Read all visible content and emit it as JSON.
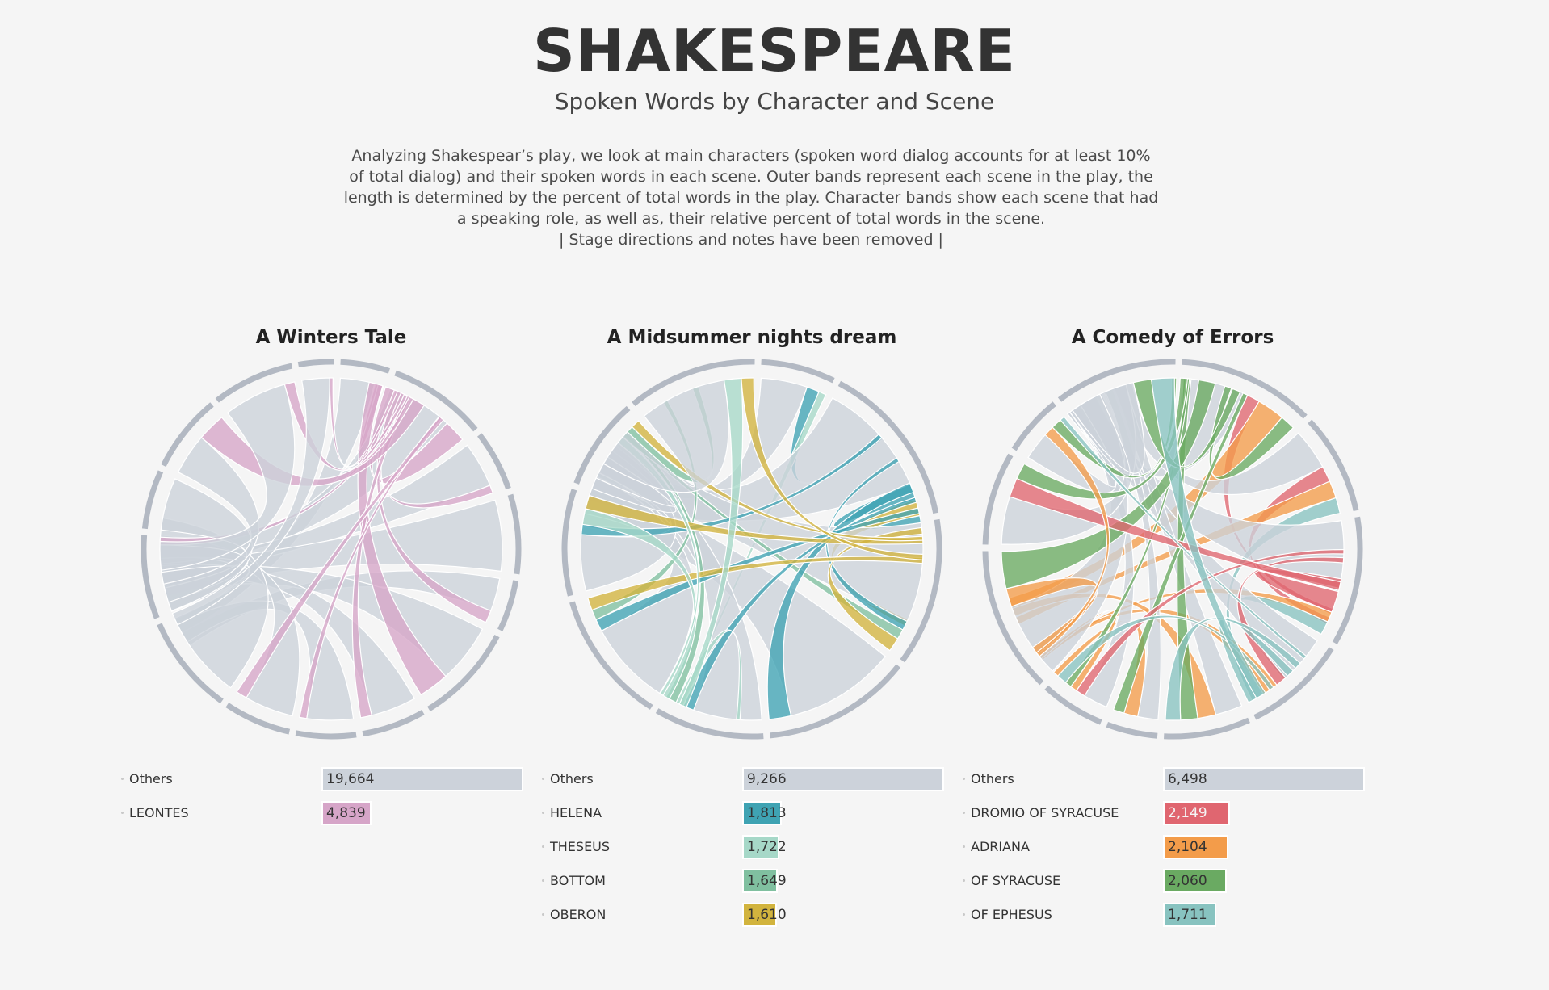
{
  "header": {
    "title": "SHAKESPEARE",
    "subtitle": "Spoken Words by Character and Scene",
    "description_lines": [
      "Analyzing Shakespear’s play, we look at main characters (spoken word dialog accounts for at least 10%",
      "of total dialog) and their spoken words in each scene. Outer bands represent each scene in the play, the",
      "length is determined by the percent of total words in the play. Character bands show each scene that had",
      "a speaking role, as well as, their relative percent of total words in the scene.",
      "| Stage directions and notes have been removed |"
    ]
  },
  "colors": {
    "outer_ring": "#b3b9c3",
    "others": "#ccd2da",
    "background": "#f5f5f5"
  },
  "chart_data": [
    {
      "type": "chord",
      "title": "A Winters Tale",
      "characters": [
        {
          "name": "Others",
          "words": 19664,
          "color": "#ccd2da"
        },
        {
          "name": "LEONTES",
          "words": 4839,
          "color": "#d6a5c8"
        }
      ],
      "scene_count": 15
    },
    {
      "type": "chord",
      "title": "A Midsummer nights dream",
      "characters": [
        {
          "name": "Others",
          "words": 9266,
          "color": "#ccd2da"
        },
        {
          "name": "HELENA",
          "words": 1813,
          "color": "#3fa3b3"
        },
        {
          "name": "THESEUS",
          "words": 1722,
          "color": "#a6d8c8"
        },
        {
          "name": "BOTTOM",
          "words": 1649,
          "color": "#80c0a0"
        },
        {
          "name": "OBERON",
          "words": 1610,
          "color": "#d2b43e"
        }
      ],
      "scene_count": 9
    },
    {
      "type": "chord",
      "title": "A Comedy of Errors",
      "characters": [
        {
          "name": "Others",
          "words": 6498,
          "color": "#ccd2da"
        },
        {
          "name": "DROMIO OF SYRACUSE",
          "words": 2149,
          "color": "#e06670"
        },
        {
          "name": "ADRIANA",
          "words": 2104,
          "color": "#f39c4a"
        },
        {
          "name": "OF SYRACUSE",
          "words": 2060,
          "color": "#6aaa62"
        },
        {
          "name": "OF EPHESUS",
          "words": 1711,
          "color": "#88c3c0"
        }
      ],
      "scene_count": 11
    }
  ],
  "legend_value_labels": [
    [
      "19,664",
      "4,839"
    ],
    [
      "9,266",
      "1,813",
      "1,722",
      "1,649",
      "1,610"
    ],
    [
      "6,498",
      "2,149",
      "2,104",
      "2,060",
      "1,711"
    ]
  ]
}
